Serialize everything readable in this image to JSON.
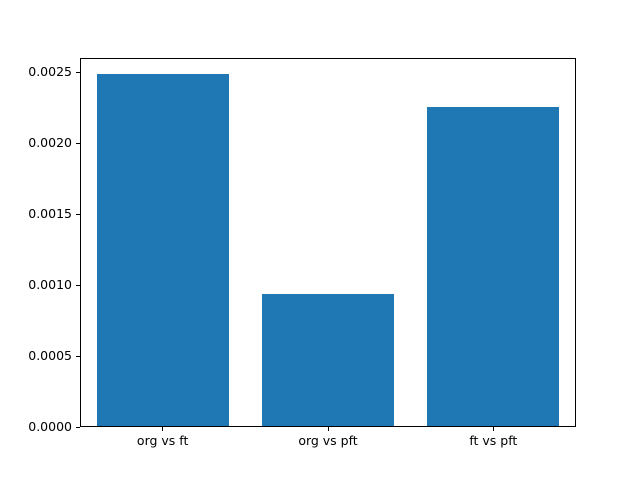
{
  "figure": {
    "background": "#ffffff"
  },
  "chart_data": {
    "type": "bar",
    "categories": [
      "org vs ft",
      "org vs pft",
      "ft vs pft"
    ],
    "values": [
      0.00248,
      0.00093,
      0.00225
    ],
    "title": "",
    "xlabel": "",
    "ylabel": "",
    "ylim": [
      0,
      0.0026
    ],
    "yticks": [
      0.0,
      0.0005,
      0.001,
      0.0015,
      0.002,
      0.0025
    ],
    "ytick_labels": [
      "0.0000",
      "0.0005",
      "0.0010",
      "0.0015",
      "0.0020",
      "0.0025"
    ],
    "bar_color": "#1f77b4",
    "bar_width_fraction": 0.8,
    "grid": false,
    "legend": null
  }
}
